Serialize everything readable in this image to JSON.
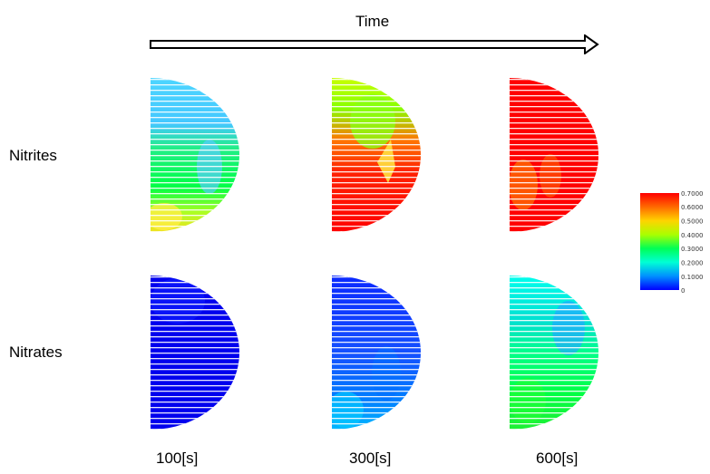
{
  "header": {
    "title": "Time"
  },
  "rows": [
    {
      "label": "Nitrites"
    },
    {
      "label": "Nitrates"
    }
  ],
  "times": [
    "100[s]",
    "300[s]",
    "600[s]"
  ],
  "colorbar": {
    "ticks": [
      "0.7000",
      "0.6000",
      "0.5000",
      "0.4000",
      "0.3000",
      "0.2000",
      "0.1000",
      "0"
    ],
    "colors": [
      "#ff0000",
      "#ff6a00",
      "#ffd400",
      "#aaff00",
      "#00ff55",
      "#00ffd5",
      "#0090ff",
      "#0000ff"
    ]
  }
}
